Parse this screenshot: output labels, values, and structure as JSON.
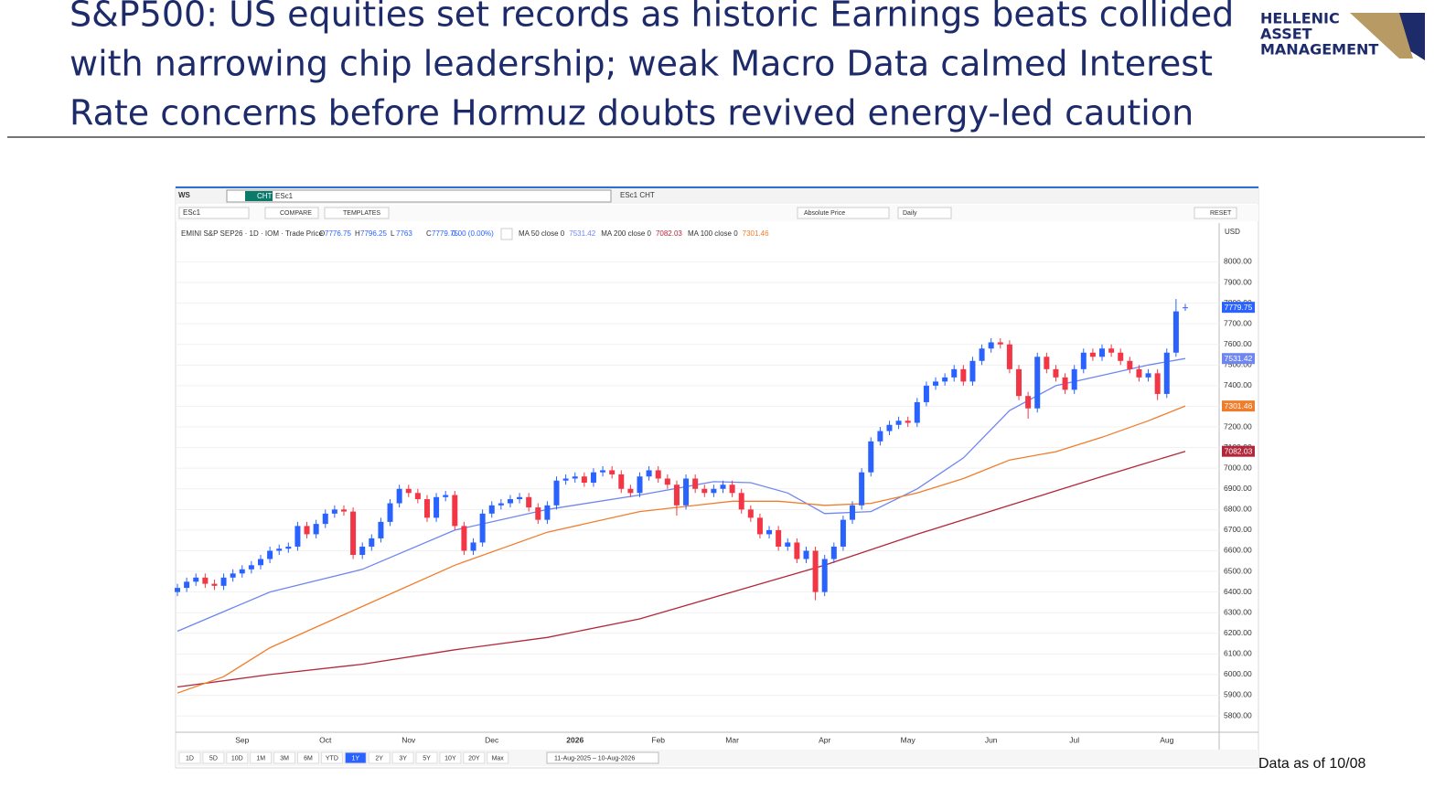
{
  "header": {
    "title_lines": [
      "S&P500: US equities set records as historic Earnings beats collided",
      "with narrowing chip leadership; weak Macro Data calmed Interest",
      "Rate concerns before Hormuz doubts revived energy-led caution"
    ],
    "logo_lines": [
      "HELLENIC",
      "ASSET",
      "MANAGEMENT"
    ]
  },
  "toolbar": {
    "workspace": "WS",
    "tab_label": "CHT",
    "symbol": "ESc1",
    "tab2": "ESc1 CHT",
    "symbol_box": "ESc1",
    "compare": "COMPARE",
    "templates": "TEMPLATES",
    "price_type": "Absolute Price",
    "interval": "Daily",
    "reset": "RESET",
    "currency": "USD"
  },
  "chart_data": {
    "type": "candlestick",
    "legend": {
      "instrument": "EMINI S&P SEP26 · 1D · IOM · Trade Price",
      "ohlc_labels": [
        "O",
        "H",
        "L",
        "C"
      ],
      "change": "0.00 (0.00%)"
    },
    "categories": [
      null,
      null,
      null,
      null,
      null,
      null,
      null,
      "Sep",
      null,
      null,
      null,
      null,
      null,
      null,
      null,
      null,
      "Oct",
      null,
      null,
      null,
      null,
      null,
      null,
      null,
      null,
      "Nov",
      null,
      null,
      null,
      null,
      null,
      null,
      null,
      null,
      "Dec",
      null,
      null,
      null,
      null,
      null,
      null,
      null,
      null,
      "2026",
      null,
      null,
      null,
      null,
      null,
      null,
      null,
      null,
      "Feb",
      null,
      null,
      null,
      null,
      null,
      null,
      null,
      "Mar",
      null,
      null,
      null,
      null,
      null,
      null,
      null,
      null,
      null,
      "Apr",
      null,
      null,
      null,
      null,
      null,
      null,
      null,
      null,
      "May",
      null,
      null,
      null,
      null,
      null,
      null,
      null,
      null,
      "Jun",
      null,
      null,
      null,
      null,
      null,
      null,
      null,
      null,
      "Jul",
      null,
      null,
      null,
      null,
      null,
      null,
      null,
      null,
      null,
      "Aug",
      null,
      null
    ],
    "open": [
      6400,
      6420,
      6450,
      6470,
      6440,
      6430,
      6470,
      6490,
      6510,
      6530,
      6560,
      6600,
      6610,
      6620,
      6720,
      6680,
      6730,
      6780,
      6800,
      6790,
      6580,
      6620,
      6660,
      6740,
      6830,
      6900,
      6880,
      6850,
      6760,
      6860,
      6870,
      6720,
      6600,
      6640,
      6780,
      6820,
      6830,
      6850,
      6860,
      6810,
      6750,
      6820,
      6940,
      6950,
      6960,
      6930,
      6980,
      6990,
      6970,
      6900,
      6880,
      6960,
      6990,
      6950,
      6920,
      6820,
      6950,
      6900,
      6880,
      6900,
      6920,
      6880,
      6800,
      6760,
      6680,
      6700,
      6620,
      6640,
      6560,
      6600,
      6400,
      6560,
      6620,
      6750,
      6820,
      6980,
      7130,
      7180,
      7210,
      7230,
      7220,
      7320,
      7400,
      7420,
      7440,
      7480,
      7420,
      7520,
      7580,
      7610,
      7600,
      7480,
      7350,
      7290,
      7540,
      7480,
      7440,
      7380,
      7480,
      7560,
      7540,
      7580,
      7560,
      7520,
      7480,
      7440,
      7460,
      7360,
      7560,
      7776.75
    ],
    "high": [
      6440,
      6470,
      6490,
      6490,
      6460,
      6490,
      6510,
      6530,
      6550,
      6580,
      6620,
      6630,
      6640,
      6740,
      6740,
      6750,
      6800,
      6820,
      6820,
      6810,
      6640,
      6680,
      6760,
      6850,
      6920,
      6920,
      6900,
      6870,
      6880,
      6890,
      6890,
      6740,
      6660,
      6800,
      6840,
      6850,
      6870,
      6880,
      6880,
      6830,
      6840,
      6960,
      6970,
      6980,
      6980,
      7000,
      7010,
      7010,
      6990,
      6920,
      6980,
      7010,
      7010,
      6970,
      6940,
      6970,
      6970,
      6920,
      6920,
      6940,
      6940,
      6900,
      6820,
      6780,
      6720,
      6720,
      6660,
      6660,
      6620,
      6620,
      6580,
      6640,
      6770,
      6840,
      7000,
      7150,
      7200,
      7230,
      7250,
      7250,
      7340,
      7420,
      7440,
      7460,
      7500,
      7500,
      7540,
      7600,
      7630,
      7630,
      7620,
      7500,
      7370,
      7560,
      7560,
      7500,
      7460,
      7500,
      7580,
      7580,
      7600,
      7600,
      7580,
      7540,
      7500,
      7480,
      7480,
      7580,
      7820,
      7796.25
    ],
    "low": [
      6380,
      6400,
      6430,
      6420,
      6410,
      6410,
      6450,
      6470,
      6490,
      6510,
      6540,
      6580,
      6590,
      6600,
      6660,
      6660,
      6710,
      6760,
      6770,
      6560,
      6560,
      6600,
      6640,
      6720,
      6810,
      6860,
      6830,
      6740,
      6740,
      6840,
      6700,
      6580,
      6580,
      6620,
      6760,
      6800,
      6810,
      6830,
      6790,
      6730,
      6730,
      6800,
      6920,
      6930,
      6910,
      6910,
      6960,
      6950,
      6880,
      6860,
      6860,
      6940,
      6930,
      6900,
      6770,
      6800,
      6880,
      6860,
      6860,
      6880,
      6860,
      6780,
      6740,
      6660,
      6660,
      6600,
      6600,
      6540,
      6540,
      6360,
      6380,
      6540,
      6600,
      6730,
      6800,
      6960,
      7110,
      7160,
      7190,
      7200,
      7200,
      7300,
      7380,
      7400,
      7420,
      7400,
      7400,
      7500,
      7560,
      7580,
      7460,
      7330,
      7240,
      7270,
      7460,
      7420,
      7360,
      7360,
      7460,
      7520,
      7520,
      7540,
      7500,
      7460,
      7420,
      7420,
      7330,
      7340,
      7540,
      7763
    ],
    "close": [
      6420,
      6450,
      6470,
      6440,
      6430,
      6470,
      6490,
      6510,
      6530,
      6560,
      6600,
      6610,
      6620,
      6720,
      6680,
      6730,
      6780,
      6800,
      6790,
      6580,
      6620,
      6660,
      6740,
      6830,
      6900,
      6880,
      6850,
      6760,
      6860,
      6870,
      6720,
      6600,
      6640,
      6780,
      6820,
      6830,
      6850,
      6860,
      6810,
      6750,
      6820,
      6940,
      6950,
      6960,
      6930,
      6980,
      6990,
      6970,
      6900,
      6880,
      6960,
      6990,
      6950,
      6920,
      6820,
      6950,
      6900,
      6880,
      6900,
      6920,
      6880,
      6800,
      6760,
      6680,
      6700,
      6620,
      6640,
      6560,
      6600,
      6400,
      6560,
      6620,
      6750,
      6820,
      6980,
      7130,
      7180,
      7210,
      7230,
      7220,
      7320,
      7400,
      7420,
      7440,
      7480,
      7420,
      7520,
      7580,
      7610,
      7600,
      7480,
      7350,
      7290,
      7540,
      7480,
      7440,
      7380,
      7480,
      7560,
      7540,
      7580,
      7560,
      7520,
      7480,
      7440,
      7460,
      7360,
      7560,
      7760,
      7779.75
    ],
    "up_color": "#2962ff",
    "down_color": "#f23645",
    "series": [
      {
        "name": "MA 50 close 0",
        "color": "#6f86f0",
        "x": [
          0,
          10,
          20,
          30,
          40,
          50,
          58,
          62,
          66,
          70,
          75,
          80,
          85,
          90,
          95,
          100,
          105,
          109
        ],
        "values": [
          6210,
          6400,
          6510,
          6700,
          6800,
          6870,
          6935,
          6930,
          6880,
          6780,
          6790,
          6900,
          7050,
          7280,
          7400,
          7450,
          7500,
          7531.42
        ]
      },
      {
        "name": "MA 200 close 0",
        "color": "#b2283a",
        "x": [
          0,
          10,
          20,
          30,
          40,
          50,
          60,
          70,
          80,
          90,
          100,
          109
        ],
        "values": [
          5940,
          6000,
          6050,
          6120,
          6180,
          6270,
          6400,
          6530,
          6680,
          6820,
          6960,
          7082.03
        ]
      },
      {
        "name": "MA 100 close 0",
        "color": "#f07d2c",
        "x": [
          0,
          5,
          10,
          20,
          30,
          40,
          50,
          60,
          65,
          70,
          75,
          80,
          85,
          90,
          95,
          100,
          105,
          109
        ],
        "values": [
          5910,
          5990,
          6130,
          6330,
          6530,
          6690,
          6790,
          6840,
          6840,
          6820,
          6830,
          6880,
          6950,
          7040,
          7080,
          7150,
          7230,
          7301.46
        ]
      }
    ],
    "ylim": [
      5725,
      8095
    ],
    "yticks": [
      {
        "value": 5800,
        "label": "5800.00"
      },
      {
        "value": 5900,
        "label": "5900.00"
      },
      {
        "value": 6000,
        "label": "6000.00"
      },
      {
        "value": 6100,
        "label": "6100.00"
      },
      {
        "value": 6200,
        "label": "6200.00"
      },
      {
        "value": 6300,
        "label": "6300.00"
      },
      {
        "value": 6400,
        "label": "6400.00"
      },
      {
        "value": 6500,
        "label": "6500.00"
      },
      {
        "value": 6600,
        "label": "6600.00"
      },
      {
        "value": 6700,
        "label": "6700.00"
      },
      {
        "value": 6800,
        "label": "6800.00"
      },
      {
        "value": 6900,
        "label": "6900.00"
      },
      {
        "value": 7000,
        "label": "7000.00"
      },
      {
        "value": 7100,
        "label": "7100.00"
      },
      {
        "value": 7200,
        "label": "7200.00"
      },
      {
        "value": 7300,
        "label": "7300.00"
      },
      {
        "value": 7400,
        "label": "7400.00"
      },
      {
        "value": 7500,
        "label": "7500.00"
      },
      {
        "value": 7600,
        "label": "7600.00"
      },
      {
        "value": 7700,
        "label": "7700.00"
      },
      {
        "value": 7800,
        "label": "7800.00"
      },
      {
        "value": 7900,
        "label": "7900.00"
      },
      {
        "value": 8000,
        "label": "8000.00"
      }
    ],
    "grid": true
  },
  "range_bar": {
    "buttons": [
      "1D",
      "5D",
      "10D",
      "1M",
      "3M",
      "6M",
      "YTD",
      "1Y",
      "2Y",
      "3Y",
      "5Y",
      "10Y",
      "20Y",
      "Max"
    ],
    "selected_index": 7,
    "date_range": "11-Aug-2025 – 10-Aug-2026"
  },
  "footer": "Data as of 10/08"
}
